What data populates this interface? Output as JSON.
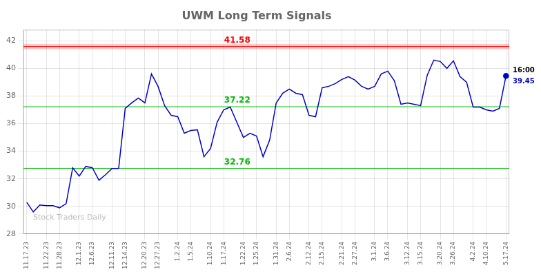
{
  "chart_data": {
    "type": "line",
    "title": "UWM Long Term Signals",
    "categories": [
      "11.17.23",
      null,
      null,
      "11.22.23",
      null,
      "11.28.23",
      null,
      null,
      "12.1.23",
      null,
      "12.6.23",
      null,
      null,
      "12.11.23",
      null,
      "12.14.23",
      null,
      null,
      "12.20.23",
      null,
      "12.27.23",
      null,
      null,
      "1.2.24",
      null,
      "1.5.24",
      null,
      null,
      "1.10.24",
      null,
      "1.17.24",
      null,
      null,
      "1.22.24",
      null,
      "1.25.24",
      null,
      null,
      "1.31.24",
      null,
      "2.6.24",
      null,
      null,
      "2.12.24",
      null,
      "2.15.24",
      null,
      null,
      "2.21.24",
      null,
      "2.27.24",
      null,
      null,
      "3.1.24",
      null,
      "3.6.24",
      null,
      null,
      "3.12.24",
      null,
      "3.15.24",
      null,
      null,
      "3.20.24",
      null,
      "3.26.24",
      null,
      null,
      "4.2.24",
      null,
      "4.10.24",
      null,
      null,
      "5.17.24"
    ],
    "series": [
      {
        "color": "#0000cc",
        "marker": "circle",
        "values": [
          30.3,
          29.6,
          30.1,
          30.05,
          30.05,
          29.9,
          30.2,
          32.8,
          32.2,
          32.9,
          32.8,
          31.9,
          32.3,
          32.75,
          32.75,
          37.1,
          37.5,
          37.85,
          37.5,
          39.6,
          38.7,
          37.3,
          36.6,
          36.5,
          35.3,
          35.5,
          35.55,
          33.6,
          34.2,
          36.1,
          37.0,
          37.2,
          36.1,
          35.0,
          35.3,
          35.1,
          33.6,
          34.8,
          37.5,
          38.2,
          38.5,
          38.2,
          38.1,
          36.6,
          36.5,
          38.6,
          38.7,
          38.9,
          39.2,
          39.4,
          39.15,
          38.7,
          38.5,
          38.7,
          39.6,
          39.8,
          39.1,
          37.4,
          37.5,
          37.4,
          37.3,
          39.5,
          40.6,
          40.5,
          40.0,
          40.55,
          39.4,
          39.0,
          37.2,
          37.2,
          37.0,
          36.9,
          37.1,
          39.45
        ]
      }
    ],
    "ylim": [
      28,
      42.8
    ],
    "yticks": [
      28,
      30,
      32,
      34,
      36,
      38,
      40,
      42
    ],
    "grid": true,
    "annotations": [
      {
        "type": "hline",
        "y": 41.58,
        "text": "41.58",
        "color": "#ff0000"
      },
      {
        "type": "hline",
        "y": 37.22,
        "text": "37.22",
        "color": "#00bb00"
      },
      {
        "type": "hline",
        "y": 32.76,
        "text": "32.76",
        "color": "#00bb00"
      },
      {
        "type": "last",
        "text": "16:00",
        "color": "#000000"
      },
      {
        "type": "last",
        "text": "39.45",
        "color": "#0000cc"
      },
      {
        "type": "watermark",
        "text": "Stock Traders Daily",
        "color": "#bbbbbb"
      }
    ]
  }
}
